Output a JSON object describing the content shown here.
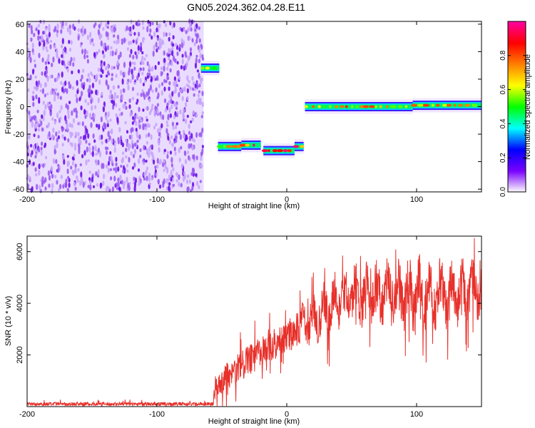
{
  "title": "GN05.2024.362.04.28.E11",
  "chart_data": [
    {
      "type": "heatmap",
      "xlabel": "Height of straight line (km)",
      "ylabel": "Frequency (Hz)",
      "xlim": [
        -200,
        150
      ],
      "ylim": [
        -62,
        62
      ],
      "xticks": [
        -200,
        -100,
        0,
        100
      ],
      "yticks": [
        -60,
        -40,
        -20,
        0,
        20,
        40,
        60
      ],
      "colorbar": {
        "label": "Normalized spectral amplitude",
        "range": [
          0,
          1
        ],
        "ticks": [
          0.0,
          0.2,
          0.4,
          0.6,
          0.8
        ],
        "tick_labels": [
          "0.0",
          "0.2",
          "0.4",
          "0.6",
          "0.8"
        ],
        "colors": [
          "#ffffff",
          "#7a00ff",
          "#0000ff",
          "#00ffff",
          "#00ff00",
          "#ffff00",
          "#ff8000",
          "#ff0000",
          "#ff00a0"
        ]
      },
      "regions": [
        {
          "kind": "noise",
          "x": [
            -200,
            -64
          ],
          "y": [
            -62,
            62
          ],
          "amplitude": 0.1
        },
        {
          "kind": "track",
          "x": [
            -66,
            -52
          ],
          "frequency": 28,
          "amplitude": 0.6
        },
        {
          "kind": "track",
          "x": [
            -53,
            -35
          ],
          "frequency": -29,
          "amplitude": 0.6
        },
        {
          "kind": "track",
          "x": [
            -35,
            -20
          ],
          "frequency": -28,
          "amplitude": 0.75
        },
        {
          "kind": "track",
          "x": [
            -18,
            6
          ],
          "frequency": -32,
          "amplitude": 0.75
        },
        {
          "kind": "track",
          "x": [
            6,
            13
          ],
          "frequency": -29,
          "amplitude": 0.75
        },
        {
          "kind": "track",
          "x": [
            14,
            97
          ],
          "frequency": 0,
          "amplitude": 0.6
        },
        {
          "kind": "track",
          "x": [
            97,
            150
          ],
          "frequency": 1,
          "amplitude": 0.65
        }
      ]
    },
    {
      "type": "line",
      "xlabel": "Height of straight line (km)",
      "ylabel": "SNR (10 * v/v)",
      "xlim": [
        -200,
        150
      ],
      "ylim": [
        0,
        6600
      ],
      "xticks": [
        -200,
        -100,
        0,
        100
      ],
      "yticks": [
        2000,
        4000,
        6000
      ],
      "color": "#e8302a",
      "series": [
        {
          "x": [
            -200,
            -170,
            -140,
            -110,
            -80,
            -57,
            -55,
            -40,
            -20,
            0,
            20,
            40,
            60,
            80,
            100,
            120,
            150
          ],
          "y_median": [
            100,
            100,
            100,
            100,
            100,
            100,
            800,
            1400,
            2100,
            2700,
            3400,
            4200,
            4350,
            4400,
            4250,
            4400,
            4450
          ],
          "y_amplitude": [
            60,
            60,
            60,
            60,
            60,
            60,
            500,
            650,
            650,
            700,
            800,
            900,
            950,
            1000,
            1150,
            1000,
            950
          ]
        }
      ]
    }
  ]
}
